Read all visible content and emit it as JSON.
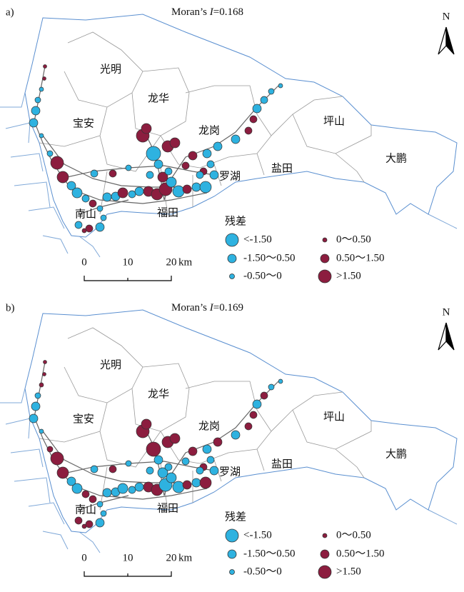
{
  "panels": [
    {
      "label": "a)",
      "moran": {
        "prefix": "Moran’s ",
        "symbol": "I",
        "value": "=0.168"
      },
      "districts": [
        "光明",
        "龙华",
        "宝安",
        "龙岗",
        "坪山",
        "大鹏",
        "罗湖",
        "盐田",
        "南山",
        "福田"
      ],
      "legend": {
        "title": "残差",
        "items": [
          "<-1.50",
          "-1.50～0.50",
          "-0.50～0",
          "0～0.50",
          "0.50～1.50",
          ">1.50"
        ]
      },
      "scale": {
        "ticks": [
          0,
          10,
          20
        ],
        "unit": "km"
      },
      "north": "N"
    },
    {
      "label": "b)",
      "moran": {
        "prefix": "Moran’s ",
        "symbol": "I",
        "value": "=0.169"
      },
      "districts": [
        "光明",
        "龙华",
        "宝安",
        "龙岗",
        "坪山",
        "大鹏",
        "罗湖",
        "盐田",
        "南山",
        "福田"
      ],
      "legend": {
        "title": "残差",
        "items": [
          "<-1.50",
          "-1.50～0.50",
          "-0.50～0",
          "0～0.50",
          "0.50～1.50",
          ">1.50"
        ]
      },
      "scale": {
        "ticks": [
          0,
          10,
          20
        ],
        "unit": "km"
      },
      "north": "N"
    }
  ]
}
